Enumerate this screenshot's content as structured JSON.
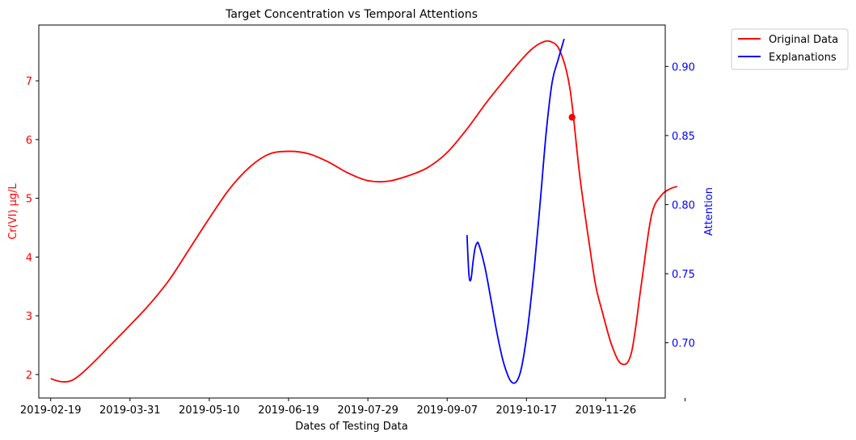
{
  "chart_data": {
    "type": "line",
    "title": "Target Concentration vs Temporal Attentions",
    "xlabel": "Dates of Testing Data",
    "ylabel_left": "Cr(VI) μg/L",
    "ylabel_right": "Attention",
    "x_ticks": [
      "2019-02-19",
      "2019-03-31",
      "2019-05-10",
      "2019-06-19",
      "2019-07-29",
      "2019-09-07",
      "2019-10-17",
      "2019-11-26",
      ""
    ],
    "x_range_days": [
      -6,
      310
    ],
    "ylim_left": [
      1.6,
      7.95
    ],
    "yticks_left": [
      2,
      3,
      4,
      5,
      6,
      7
    ],
    "ylim_right": [
      0.66,
      0.93
    ],
    "yticks_right": [
      0.7,
      0.75,
      0.8,
      0.85,
      0.9
    ],
    "grid": false,
    "legend_position": "outside-top-right",
    "colors": {
      "original": "#ff0000",
      "explanations": "#0000ff"
    },
    "series": [
      {
        "name": "Original Data",
        "axis": "left",
        "color": "#ff0000",
        "x": [
          "2019-02-19",
          "2019-02-24",
          "2019-03-01",
          "2019-03-06",
          "2019-03-13",
          "2019-03-20",
          "2019-03-31",
          "2019-04-10",
          "2019-04-20",
          "2019-04-30",
          "2019-05-10",
          "2019-05-20",
          "2019-05-30",
          "2019-06-09",
          "2019-06-19",
          "2019-06-29",
          "2019-07-09",
          "2019-07-19",
          "2019-07-29",
          "2019-08-08",
          "2019-08-18",
          "2019-08-28",
          "2019-09-07",
          "2019-09-17",
          "2019-09-27",
          "2019-10-07",
          "2019-10-14",
          "2019-10-19",
          "2019-10-24",
          "2019-10-29",
          "2019-11-03",
          "2019-11-08",
          "2019-11-13",
          "2019-11-18",
          "2019-11-21",
          "2019-11-24",
          "2019-11-29",
          "2019-12-04",
          "2019-12-09",
          "2019-12-14",
          "2019-12-19",
          "2019-12-24",
          "2019-12-29",
          "2020-01-01"
        ],
        "y": [
          1.93,
          1.88,
          1.89,
          2.0,
          2.22,
          2.46,
          2.84,
          3.2,
          3.62,
          4.14,
          4.66,
          5.15,
          5.52,
          5.75,
          5.8,
          5.76,
          5.62,
          5.43,
          5.3,
          5.29,
          5.38,
          5.52,
          5.78,
          6.18,
          6.64,
          7.06,
          7.34,
          7.52,
          7.64,
          7.67,
          7.5,
          6.85,
          5.35,
          4.15,
          3.5,
          3.1,
          2.5,
          2.18,
          2.38,
          3.55,
          4.7,
          5.05,
          5.17,
          5.2
        ]
      },
      {
        "name": "Explanations",
        "axis": "right",
        "color": "#0000ff",
        "x": [
          "2019-09-17",
          "2019-09-18",
          "2019-09-19",
          "2019-09-20",
          "2019-09-21",
          "2019-09-22",
          "2019-09-23",
          "2019-09-26",
          "2019-09-29",
          "2019-10-02",
          "2019-10-05",
          "2019-10-08",
          "2019-10-10",
          "2019-10-12",
          "2019-10-14",
          "2019-10-16",
          "2019-10-18",
          "2019-10-21",
          "2019-10-24",
          "2019-10-27",
          "2019-10-30",
          "2019-11-02",
          "2019-11-05"
        ],
        "y": [
          0.778,
          0.749,
          0.746,
          0.758,
          0.768,
          0.772,
          0.771,
          0.755,
          0.732,
          0.708,
          0.688,
          0.675,
          0.671,
          0.672,
          0.679,
          0.694,
          0.715,
          0.755,
          0.803,
          0.853,
          0.889,
          0.905,
          0.92
        ]
      }
    ],
    "marker": {
      "series": "Original Data",
      "x": "2019-11-09",
      "y": 6.38
    },
    "legend": [
      "Original Data",
      "Explanations"
    ]
  }
}
